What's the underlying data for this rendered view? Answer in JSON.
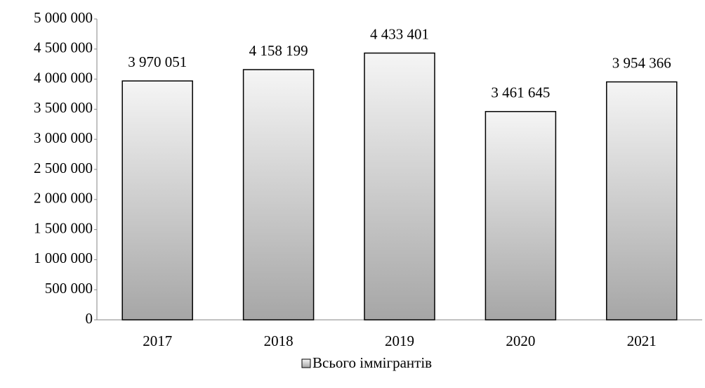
{
  "chart_data": {
    "type": "bar",
    "categories": [
      "2017",
      "2018",
      "2019",
      "2020",
      "2021"
    ],
    "series": [
      {
        "name": "Всього іммігрантів",
        "color": "#a6a6a6",
        "values": [
          3970051,
          4158199,
          4433401,
          3461645,
          3954366
        ],
        "value_labels": [
          "3 970 051",
          "4 158 199",
          "4 433 401",
          "3 461 645",
          "3 954 366"
        ]
      }
    ],
    "ylim": [
      0,
      5000000
    ],
    "yticks": [
      {
        "value": 0,
        "label": "0"
      },
      {
        "value": 500000,
        "label": "500 000"
      },
      {
        "value": 1000000,
        "label": "1 000 000"
      },
      {
        "value": 1500000,
        "label": "1 500 000"
      },
      {
        "value": 2000000,
        "label": "2 000 000"
      },
      {
        "value": 2500000,
        "label": "2 500 000"
      },
      {
        "value": 3000000,
        "label": "3 000 000"
      },
      {
        "value": 3500000,
        "label": "3 500 000"
      },
      {
        "value": 4000000,
        "label": "4 000 000"
      },
      {
        "value": 4500000,
        "label": "4 500 000"
      },
      {
        "value": 5000000,
        "label": "5 000 000"
      }
    ],
    "grid": false,
    "legend": "bottom"
  }
}
